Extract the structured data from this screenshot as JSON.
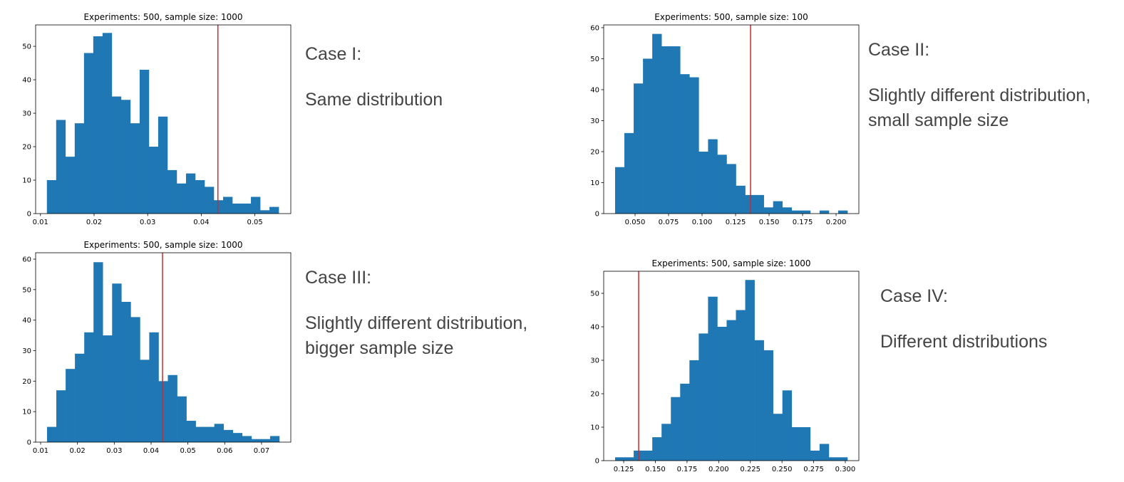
{
  "chart_data": [
    {
      "type": "histogram",
      "title": "Experiments: 500, sample size: 1000",
      "color": "#1f77b4",
      "vline": 0.0431,
      "vline_color": "#d62728",
      "bins": [
        0.0112,
        0.01293,
        0.01466,
        0.01639,
        0.01812,
        0.01985,
        0.02158,
        0.02331,
        0.02504,
        0.02677,
        0.0285,
        0.03023,
        0.03196,
        0.03369,
        0.03542,
        0.03715,
        0.03888,
        0.04061,
        0.04234,
        0.04407,
        0.0458,
        0.04753,
        0.04926,
        0.05099,
        0.05272,
        0.05445
      ],
      "values": [
        10,
        28,
        17,
        27,
        48,
        53,
        54,
        35,
        34,
        27,
        43,
        20,
        29,
        13,
        9,
        12,
        10,
        8,
        4,
        5,
        3,
        3,
        5,
        1,
        2
      ],
      "xlim": [
        0.0091,
        0.0567
      ],
      "ylim": [
        0,
        56.4
      ],
      "xticks": [
        0.01,
        0.02,
        0.03,
        0.04,
        0.05
      ],
      "yticks": [
        0,
        10,
        20,
        30,
        40,
        50
      ]
    },
    {
      "type": "histogram",
      "title": "Experiments: 500, sample size: 100",
      "color": "#1f77b4",
      "vline": 0.1362,
      "vline_color": "#d62728",
      "bins": [
        0.0351,
        0.04204,
        0.04897,
        0.05591,
        0.06284,
        0.06978,
        0.07672,
        0.08365,
        0.09059,
        0.09752,
        0.10446,
        0.1114,
        0.11833,
        0.12527,
        0.1322,
        0.13914,
        0.14608,
        0.15301,
        0.15995,
        0.16688,
        0.17382,
        0.18076,
        0.18769,
        0.19463,
        0.20156,
        0.2085
      ],
      "values": [
        15,
        26,
        42,
        50,
        58,
        54,
        54,
        45,
        44,
        20,
        24,
        19,
        16,
        9,
        6,
        6,
        2,
        4,
        2,
        1,
        1,
        0,
        1,
        0,
        1
      ],
      "xlim": [
        0.0266,
        0.217
      ],
      "ylim": [
        0,
        60.9
      ],
      "xticks": [
        {
          "value": 0.05,
          "label": "0.050"
        },
        0.075,
        {
          "value": 0.1,
          "label": "0.100"
        },
        0.125,
        {
          "value": 0.15,
          "label": "0.150"
        },
        0.175,
        {
          "value": 0.2,
          "label": "0.200"
        }
      ],
      "yticks": [
        0,
        10,
        20,
        30,
        40,
        50,
        60
      ]
    },
    {
      "type": "histogram",
      "title": "Experiments: 500, sample size: 1000",
      "color": "#1f77b4",
      "vline": 0.0431,
      "vline_color": "#d62728",
      "bins": [
        0.01174,
        0.01426,
        0.01679,
        0.01931,
        0.02184,
        0.02436,
        0.02688,
        0.02941,
        0.03193,
        0.03446,
        0.03698,
        0.0395,
        0.04203,
        0.04455,
        0.04708,
        0.0496,
        0.05212,
        0.05465,
        0.05717,
        0.0597,
        0.06222,
        0.06474,
        0.06727,
        0.06979,
        0.07232,
        0.07484
      ],
      "values": [
        5,
        17,
        24,
        29,
        36,
        59,
        35,
        52,
        46,
        41,
        27,
        36,
        20,
        22,
        15,
        7,
        5,
        5,
        6,
        4,
        3,
        2,
        1,
        1,
        2
      ],
      "xlim": [
        0.00864,
        0.07795
      ],
      "ylim": [
        0,
        62.1
      ],
      "xticks": [
        0.01,
        0.02,
        0.03,
        0.04,
        0.05,
        0.06,
        0.07
      ],
      "yticks": [
        0,
        10,
        20,
        30,
        40,
        50,
        60
      ]
    },
    {
      "type": "histogram",
      "title": "Experiments: 500, sample size: 1000",
      "color": "#1f77b4",
      "vline": 0.1368,
      "vline_color": "#d62728",
      "bins": [
        0.1182,
        0.12554,
        0.13288,
        0.14022,
        0.14756,
        0.1549,
        0.16224,
        0.16958,
        0.17692,
        0.18426,
        0.1916,
        0.19894,
        0.20628,
        0.21362,
        0.22096,
        0.2283,
        0.23564,
        0.24298,
        0.25032,
        0.25766,
        0.265,
        0.27234,
        0.27968,
        0.28702,
        0.29436,
        0.3017
      ],
      "values": [
        1,
        1,
        3,
        3,
        7,
        11,
        19,
        23,
        30,
        38,
        49,
        40,
        42,
        45,
        54,
        36,
        33,
        14,
        21,
        10,
        10,
        3,
        5,
        1,
        1
      ],
      "xlim": [
        0.1092,
        0.3107
      ],
      "ylim": [
        0,
        56.6
      ],
      "xticks": [
        0.125,
        {
          "value": 0.15,
          "label": "0.150"
        },
        0.175,
        {
          "value": 0.2,
          "label": "0.200"
        },
        0.225,
        {
          "value": 0.25,
          "label": "0.250"
        },
        0.275,
        {
          "value": 0.3,
          "label": "0.300"
        }
      ],
      "yticks": [
        0,
        10,
        20,
        30,
        40,
        50
      ]
    }
  ],
  "cases": [
    {
      "heading": "Case I:",
      "text": "Same distribution"
    },
    {
      "heading": "Case II:",
      "text": "Slightly different distribution, small sample size"
    },
    {
      "heading": "Case III:",
      "text": "Slightly different distribution, bigger sample size"
    },
    {
      "heading": "Case IV:",
      "text": "Different distributions"
    }
  ]
}
